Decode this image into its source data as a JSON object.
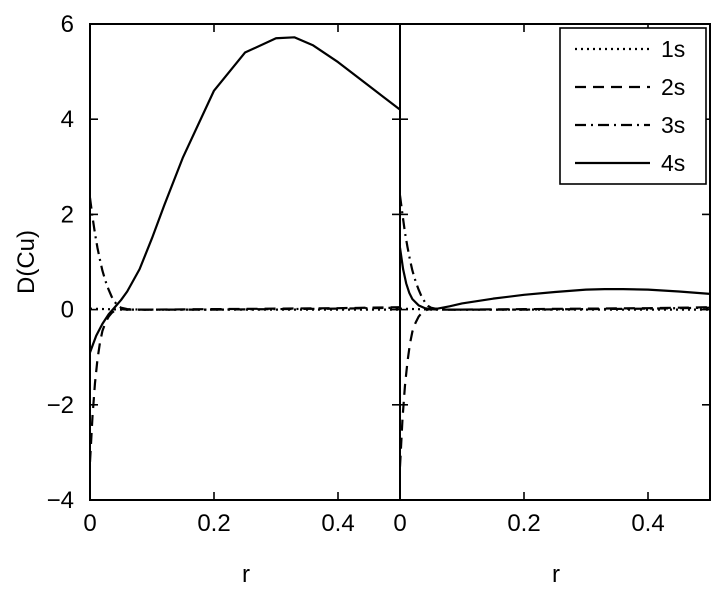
{
  "chart_data": [
    {
      "type": "line",
      "panel": "left",
      "xlabel": "r",
      "ylabel": "D(Cu)",
      "xlim": [
        0,
        0.5
      ],
      "ylim": [
        -4,
        6
      ],
      "xticks": [
        "0",
        "0.2",
        "0.4"
      ],
      "yticks": [
        "−4",
        "−2",
        "0",
        "2",
        "4",
        "6"
      ],
      "grid": false,
      "series": [
        {
          "name": "1s",
          "style": "dotted",
          "x": [
            0,
            0.05,
            0.1,
            0.2,
            0.3,
            0.4,
            0.5
          ],
          "y": [
            0.02,
            0.0,
            0.0,
            0.0,
            0.0,
            0.0,
            0.0
          ]
        },
        {
          "name": "2s",
          "style": "dashed",
          "x": [
            0,
            0.004,
            0.008,
            0.012,
            0.016,
            0.02,
            0.025,
            0.03,
            0.035,
            0.04,
            0.045,
            0.05,
            0.06,
            0.1,
            0.2,
            0.3,
            0.4,
            0.5
          ],
          "y": [
            -3.2,
            -2.25,
            -1.55,
            -1.05,
            -0.7,
            -0.45,
            -0.27,
            -0.15,
            -0.07,
            -0.02,
            0.0,
            0.01,
            0.0,
            0.0,
            0.01,
            0.02,
            0.03,
            0.05
          ]
        },
        {
          "name": "3s",
          "style": "dashdot",
          "x": [
            0,
            0.004,
            0.008,
            0.012,
            0.016,
            0.02,
            0.025,
            0.03,
            0.035,
            0.04,
            0.045,
            0.05,
            0.06,
            0.08,
            0.1,
            0.2,
            0.3,
            0.4,
            0.5
          ],
          "y": [
            2.35,
            1.95,
            1.6,
            1.3,
            1.05,
            0.82,
            0.6,
            0.42,
            0.27,
            0.16,
            0.08,
            0.04,
            0.01,
            0.0,
            0.0,
            0.0,
            0.01,
            0.02,
            0.04
          ]
        },
        {
          "name": "4s",
          "style": "solid",
          "x": [
            0,
            0.01,
            0.02,
            0.03,
            0.04,
            0.05,
            0.06,
            0.08,
            0.1,
            0.12,
            0.15,
            0.2,
            0.25,
            0.3,
            0.33,
            0.36,
            0.4,
            0.45,
            0.5
          ],
          "y": [
            -0.9,
            -0.55,
            -0.3,
            -0.1,
            0.05,
            0.2,
            0.38,
            0.85,
            1.5,
            2.2,
            3.2,
            4.6,
            5.4,
            5.7,
            5.72,
            5.55,
            5.2,
            4.7,
            4.2
          ]
        }
      ]
    },
    {
      "type": "line",
      "panel": "right",
      "xlabel": "r",
      "ylabel": "",
      "xlim": [
        0,
        0.5
      ],
      "ylim": [
        -4,
        6
      ],
      "xticks": [
        "0",
        "0.2",
        "0.4"
      ],
      "grid": false,
      "legend": "top-right",
      "series": [
        {
          "name": "1s",
          "style": "dotted",
          "x": [
            0,
            0.05,
            0.1,
            0.2,
            0.3,
            0.4,
            0.5
          ],
          "y": [
            0.02,
            0.0,
            0.0,
            0.0,
            0.0,
            0.0,
            0.0
          ]
        },
        {
          "name": "2s",
          "style": "dashed",
          "x": [
            0,
            0.004,
            0.008,
            0.012,
            0.016,
            0.02,
            0.025,
            0.03,
            0.035,
            0.04,
            0.045,
            0.05,
            0.06,
            0.1,
            0.2,
            0.3,
            0.4,
            0.5
          ],
          "y": [
            -3.3,
            -2.3,
            -1.6,
            -1.1,
            -0.72,
            -0.46,
            -0.28,
            -0.15,
            -0.07,
            -0.02,
            0.0,
            0.01,
            0.0,
            0.0,
            0.01,
            0.02,
            0.03,
            0.05
          ]
        },
        {
          "name": "3s",
          "style": "dashdot",
          "x": [
            0,
            0.004,
            0.008,
            0.012,
            0.016,
            0.02,
            0.025,
            0.03,
            0.035,
            0.04,
            0.045,
            0.05,
            0.06,
            0.08,
            0.1,
            0.2,
            0.3,
            0.4,
            0.5
          ],
          "y": [
            2.4,
            2.0,
            1.62,
            1.32,
            1.05,
            0.82,
            0.6,
            0.42,
            0.27,
            0.16,
            0.08,
            0.04,
            0.01,
            0.0,
            0.0,
            0.0,
            0.01,
            0.02,
            0.04
          ]
        },
        {
          "name": "4s",
          "style": "solid",
          "x": [
            0,
            0.005,
            0.01,
            0.015,
            0.02,
            0.03,
            0.04,
            0.05,
            0.06,
            0.08,
            0.1,
            0.15,
            0.2,
            0.25,
            0.3,
            0.33,
            0.36,
            0.4,
            0.45,
            0.5
          ],
          "y": [
            1.3,
            0.85,
            0.55,
            0.35,
            0.22,
            0.09,
            0.03,
            0.01,
            0.02,
            0.07,
            0.13,
            0.23,
            0.31,
            0.37,
            0.42,
            0.43,
            0.43,
            0.42,
            0.38,
            0.33
          ]
        }
      ]
    }
  ]
}
